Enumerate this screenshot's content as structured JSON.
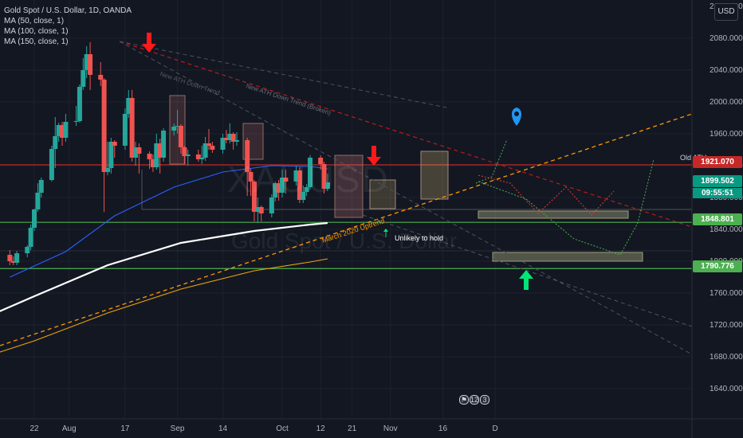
{
  "legend": {
    "symbol": "Gold Spot / U.S. Dollar, 1D, OANDA",
    "ma50": "MA (50, close, 1)",
    "ma100": "MA (100, close, 1)",
    "ma150": "MA (150, close, 1)"
  },
  "currency_button": "USD",
  "watermark": {
    "symbol": "XAUUSD",
    "description": "Gold Spot / U.S. Dollar"
  },
  "price_tags": {
    "old_ath": "1921.070",
    "current": "1899.502",
    "countdown": "09:55:51",
    "support_1": "1848.801",
    "support_2": "1790.776"
  },
  "annotations": {
    "old_ath_label": "Old ATH",
    "new_ath_trend": "New ATH Down Trend (Broken)",
    "new_ath_trend_2": "New ATH Down Trend",
    "march_uptrend": "March 2020 Uptrend",
    "unlikely": "Unlikely to hold"
  },
  "events": [
    "12",
    "3"
  ],
  "colors": {
    "background": "#131722",
    "up_candle": "#26a69a",
    "down_candle": "#ef5350",
    "ma50": "#2962ff",
    "ma100": "#ffffff",
    "ma150": "#f0a30a",
    "resistance": "#c62828",
    "support": "#4caf50",
    "trend_orange": "#ff9800",
    "arrow_red": "#ff1a1a",
    "arrow_green": "#00e676",
    "marker_blue": "#2196f3"
  },
  "chart_data": {
    "type": "candlestick",
    "title": "Gold Spot / U.S. Dollar, 1D, OANDA",
    "ylim": [
      1600,
      2100
    ],
    "y_ticks": [
      1640,
      1680,
      1720,
      1760,
      1800,
      1840,
      1880,
      1920,
      1960,
      2000,
      2040,
      2080
    ],
    "y_tick_labels": [
      "1640.000",
      "1680.000",
      "1720.000",
      "1760.000",
      "1800.000",
      "1840.000",
      "1880.000",
      "1920.000",
      "1960.000",
      "2000.000",
      "2040.000",
      "2080.000"
    ],
    "x_tick_labels": [
      "22",
      "Aug",
      "17",
      "Sep",
      "14",
      "Oct",
      "12",
      "21",
      "Nov",
      "16",
      "D"
    ],
    "x_tick_dates": [
      "2020-07-22",
      "2020-08-01",
      "2020-08-17",
      "2020-09-01",
      "2020-09-14",
      "2020-10-01",
      "2020-10-12",
      "2020-10-21",
      "2020-11-01",
      "2020-11-16",
      "2020-12-01"
    ],
    "grid": true,
    "candles": [
      {
        "date": "2020-07-15",
        "o": 1808,
        "h": 1814,
        "l": 1795,
        "c": 1800
      },
      {
        "date": "2020-07-16",
        "o": 1800,
        "h": 1806,
        "l": 1795,
        "c": 1798
      },
      {
        "date": "2020-07-17",
        "o": 1798,
        "h": 1813,
        "l": 1795,
        "c": 1810
      },
      {
        "date": "2020-07-20",
        "o": 1810,
        "h": 1820,
        "l": 1805,
        "c": 1818
      },
      {
        "date": "2020-07-21",
        "o": 1818,
        "h": 1846,
        "l": 1814,
        "c": 1842
      },
      {
        "date": "2020-07-22",
        "o": 1842,
        "h": 1866,
        "l": 1838,
        "c": 1865
      },
      {
        "date": "2020-07-23",
        "o": 1865,
        "h": 1898,
        "l": 1862,
        "c": 1886
      },
      {
        "date": "2020-07-24",
        "o": 1886,
        "h": 1905,
        "l": 1880,
        "c": 1902
      },
      {
        "date": "2020-07-27",
        "o": 1902,
        "h": 1945,
        "l": 1900,
        "c": 1941
      },
      {
        "date": "2020-07-28",
        "o": 1941,
        "h": 1981,
        "l": 1917,
        "c": 1957
      },
      {
        "date": "2020-07-29",
        "o": 1957,
        "h": 1974,
        "l": 1950,
        "c": 1971
      },
      {
        "date": "2020-07-30",
        "o": 1971,
        "h": 1975,
        "l": 1945,
        "c": 1955
      },
      {
        "date": "2020-07-31",
        "o": 1955,
        "h": 1985,
        "l": 1950,
        "c": 1975
      },
      {
        "date": "2020-08-03",
        "o": 1975,
        "h": 1995,
        "l": 1970,
        "c": 1976
      },
      {
        "date": "2020-08-04",
        "o": 1976,
        "h": 2022,
        "l": 1974,
        "c": 2019
      },
      {
        "date": "2020-08-05",
        "o": 2019,
        "h": 2055,
        "l": 2015,
        "c": 2040
      },
      {
        "date": "2020-08-06",
        "o": 2040,
        "h": 2070,
        "l": 2030,
        "c": 2060
      },
      {
        "date": "2020-08-07",
        "o": 2060,
        "h": 2075,
        "l": 2015,
        "c": 2034
      },
      {
        "date": "2020-08-10",
        "o": 2034,
        "h": 2050,
        "l": 2020,
        "c": 2028
      },
      {
        "date": "2020-08-11",
        "o": 2028,
        "h": 2030,
        "l": 1862,
        "c": 1912
      },
      {
        "date": "2020-08-12",
        "o": 1912,
        "h": 1950,
        "l": 1908,
        "c": 1917
      },
      {
        "date": "2020-08-13",
        "o": 1917,
        "h": 1955,
        "l": 1910,
        "c": 1950
      },
      {
        "date": "2020-08-14",
        "o": 1950,
        "h": 1952,
        "l": 1930,
        "c": 1945
      },
      {
        "date": "2020-08-17",
        "o": 1945,
        "h": 1992,
        "l": 1940,
        "c": 1985
      },
      {
        "date": "2020-08-18",
        "o": 1985,
        "h": 2015,
        "l": 1980,
        "c": 2005
      },
      {
        "date": "2020-08-19",
        "o": 2005,
        "h": 2015,
        "l": 1925,
        "c": 1930
      },
      {
        "date": "2020-08-20",
        "o": 1930,
        "h": 1950,
        "l": 1920,
        "c": 1943
      },
      {
        "date": "2020-08-21",
        "o": 1943,
        "h": 1948,
        "l": 1910,
        "c": 1935
      },
      {
        "date": "2020-08-24",
        "o": 1935,
        "h": 1938,
        "l": 1916,
        "c": 1928
      },
      {
        "date": "2020-08-25",
        "o": 1928,
        "h": 1934,
        "l": 1912,
        "c": 1918
      },
      {
        "date": "2020-08-26",
        "o": 1918,
        "h": 1960,
        "l": 1915,
        "c": 1948
      },
      {
        "date": "2020-08-27",
        "o": 1948,
        "h": 1954,
        "l": 1910,
        "c": 1930
      },
      {
        "date": "2020-08-28",
        "o": 1930,
        "h": 1967,
        "l": 1925,
        "c": 1964
      },
      {
        "date": "2020-08-31",
        "o": 1964,
        "h": 1973,
        "l": 1958,
        "c": 1969
      },
      {
        "date": "2020-09-01",
        "o": 1969,
        "h": 1990,
        "l": 1960,
        "c": 1970
      },
      {
        "date": "2020-09-02",
        "o": 1970,
        "h": 1972,
        "l": 1935,
        "c": 1943
      },
      {
        "date": "2020-09-03",
        "o": 1943,
        "h": 1945,
        "l": 1922,
        "c": 1932
      },
      {
        "date": "2020-09-04",
        "o": 1932,
        "h": 1940,
        "l": 1920,
        "c": 1934
      },
      {
        "date": "2020-09-07",
        "o": 1934,
        "h": 1940,
        "l": 1925,
        "c": 1928
      },
      {
        "date": "2020-09-08",
        "o": 1928,
        "h": 1945,
        "l": 1922,
        "c": 1930
      },
      {
        "date": "2020-09-09",
        "o": 1930,
        "h": 1956,
        "l": 1926,
        "c": 1948
      },
      {
        "date": "2020-09-10",
        "o": 1948,
        "h": 1966,
        "l": 1940,
        "c": 1945
      },
      {
        "date": "2020-09-11",
        "o": 1945,
        "h": 1950,
        "l": 1936,
        "c": 1940
      },
      {
        "date": "2020-09-14",
        "o": 1940,
        "h": 1960,
        "l": 1935,
        "c": 1955
      },
      {
        "date": "2020-09-15",
        "o": 1955,
        "h": 1965,
        "l": 1948,
        "c": 1952
      },
      {
        "date": "2020-09-16",
        "o": 1952,
        "h": 1973,
        "l": 1948,
        "c": 1960
      },
      {
        "date": "2020-09-17",
        "o": 1960,
        "h": 1962,
        "l": 1940,
        "c": 1950
      },
      {
        "date": "2020-09-18",
        "o": 1950,
        "h": 1962,
        "l": 1945,
        "c": 1952
      },
      {
        "date": "2020-09-21",
        "o": 1952,
        "h": 1955,
        "l": 1882,
        "c": 1912
      },
      {
        "date": "2020-09-22",
        "o": 1912,
        "h": 1916,
        "l": 1882,
        "c": 1900
      },
      {
        "date": "2020-09-23",
        "o": 1900,
        "h": 1902,
        "l": 1850,
        "c": 1862
      },
      {
        "date": "2020-09-24",
        "o": 1862,
        "h": 1880,
        "l": 1848,
        "c": 1868
      },
      {
        "date": "2020-09-25",
        "o": 1868,
        "h": 1870,
        "l": 1850,
        "c": 1860
      },
      {
        "date": "2020-09-28",
        "o": 1860,
        "h": 1884,
        "l": 1855,
        "c": 1880
      },
      {
        "date": "2020-09-29",
        "o": 1880,
        "h": 1900,
        "l": 1875,
        "c": 1898
      },
      {
        "date": "2020-09-30",
        "o": 1898,
        "h": 1902,
        "l": 1876,
        "c": 1886
      },
      {
        "date": "2020-10-01",
        "o": 1886,
        "h": 1915,
        "l": 1880,
        "c": 1905
      },
      {
        "date": "2020-10-02",
        "o": 1905,
        "h": 1915,
        "l": 1885,
        "c": 1900
      },
      {
        "date": "2020-10-05",
        "o": 1900,
        "h": 1920,
        "l": 1895,
        "c": 1914
      },
      {
        "date": "2020-10-06",
        "o": 1914,
        "h": 1918,
        "l": 1873,
        "c": 1877
      },
      {
        "date": "2020-10-07",
        "o": 1877,
        "h": 1895,
        "l": 1873,
        "c": 1887
      },
      {
        "date": "2020-10-08",
        "o": 1887,
        "h": 1897,
        "l": 1882,
        "c": 1893
      },
      {
        "date": "2020-10-09",
        "o": 1893,
        "h": 1933,
        "l": 1890,
        "c": 1930
      },
      {
        "date": "2020-10-12",
        "o": 1930,
        "h": 1933,
        "l": 1915,
        "c": 1922
      },
      {
        "date": "2020-10-13",
        "o": 1922,
        "h": 1925,
        "l": 1885,
        "c": 1891
      },
      {
        "date": "2020-10-14",
        "o": 1891,
        "h": 1910,
        "l": 1888,
        "c": 1899
      }
    ],
    "moving_averages": [
      {
        "name": "MA (50, close, 1)",
        "x": [
          "2020-07-15",
          "2020-07-31",
          "2020-08-14",
          "2020-08-31",
          "2020-09-14",
          "2020-09-28",
          "2020-10-09",
          "2020-10-14"
        ],
        "y": [
          1780,
          1812,
          1857,
          1893,
          1912,
          1920,
          1919,
          1916
        ]
      },
      {
        "name": "MA (100, close, 1)",
        "x": [
          "2020-06-10",
          "2020-07-01",
          "2020-07-22",
          "2020-08-12",
          "2020-09-02",
          "2020-09-23",
          "2020-10-09",
          "2020-10-14"
        ],
        "y": [
          1689,
          1716,
          1756,
          1795,
          1823,
          1838,
          1846,
          1848
        ]
      },
      {
        "name": "MA (150, close, 1)",
        "x": [
          "2020-06-10",
          "2020-07-01",
          "2020-07-22",
          "2020-08-12",
          "2020-09-02",
          "2020-09-23",
          "2020-10-09",
          "2020-10-14"
        ],
        "y": [
          1645,
          1670,
          1700,
          1735,
          1765,
          1788,
          1799,
          1803
        ]
      }
    ],
    "levels": [
      {
        "name": "Old ATH",
        "price": 1921.07
      },
      {
        "name": "support",
        "price": 1848.801
      },
      {
        "name": "support",
        "price": 1790.776
      }
    ]
  }
}
